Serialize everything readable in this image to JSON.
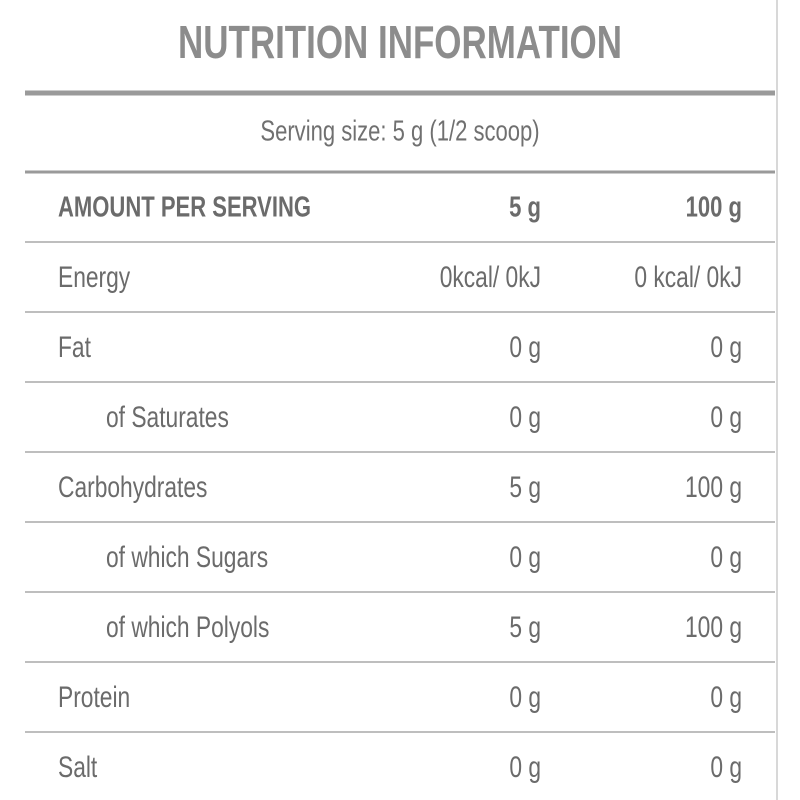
{
  "header": {
    "title": "NUTRITION INFORMATION",
    "serving_size": "Serving size: 5 g (1/2 scoop)"
  },
  "table": {
    "columns": [
      "AMOUNT PER SERVING",
      "5 g",
      "100 g"
    ],
    "rows": [
      [
        "Energy",
        "0kcal/ 0kJ",
        "0 kcal/ 0kJ"
      ],
      [
        "Fat",
        "0 g",
        "0 g"
      ],
      [
        "of Saturates",
        "0 g",
        "0 g"
      ],
      [
        "Carbohydrates",
        "5 g",
        "100 g"
      ],
      [
        "of which Sugars",
        "0 g",
        "0 g"
      ],
      [
        "of which Polyols",
        "5 g",
        "100 g"
      ],
      [
        "Protein",
        "0 g",
        "0 g"
      ],
      [
        "Salt",
        "0 g",
        "0 g"
      ]
    ]
  }
}
